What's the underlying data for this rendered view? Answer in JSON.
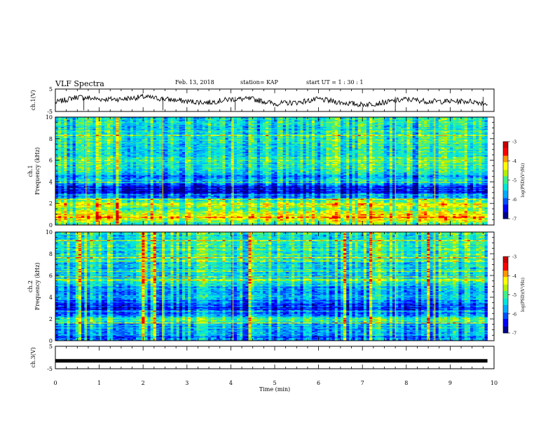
{
  "header": {
    "title": "VLF Spectra",
    "date": "Feb. 13, 2018",
    "station": "station= KAP",
    "start_ut": "start  UT =   1 : 30 : 1"
  },
  "chart_data": [
    {
      "type": "line",
      "panel": "ch1-waveform",
      "ylabel": "ch.1(V)",
      "ylim": [
        -5,
        5
      ],
      "yticks": [
        "5",
        "-5"
      ],
      "xlim": [
        0,
        10
      ],
      "x_extent": [
        0,
        9.85
      ],
      "series": [
        {
          "x": [
            0,
            0.5,
            1,
            1.5,
            2,
            2.5,
            3,
            3.5,
            4,
            4.5,
            5,
            5.5,
            6,
            6.5,
            7,
            7.5,
            8,
            8.5,
            9,
            9.5,
            9.85
          ],
          "values": [
            -1.0,
            1.5,
            0.5,
            0.5,
            1.5,
            0.5,
            -0.5,
            -1.0,
            0.5,
            0.5,
            -1.5,
            -1.0,
            0.5,
            -1.0,
            -2.0,
            -1.0,
            0.5,
            -0.5,
            -0.5,
            -0.5,
            -1.5
          ]
        }
      ]
    },
    {
      "type": "heatmap",
      "panel": "ch1-spectrogram",
      "ylabel": "ch.1\nFrequency (kHz)",
      "ylim": [
        0,
        10
      ],
      "yticks": [
        "10",
        "8",
        "6",
        "4",
        "2",
        "0"
      ],
      "xlim": [
        0,
        10
      ],
      "x_extent": [
        0,
        9.85
      ],
      "colorbar": {
        "label": "log(PSD)(V²/Hz)",
        "range": [
          -7,
          -3
        ],
        "ticks": [
          "-3",
          "-4",
          "-5",
          "-6",
          "-7"
        ]
      },
      "frequency_bands_khz": [
        10,
        9,
        8,
        7,
        6,
        5.5,
        5,
        4.5,
        4,
        3.5,
        3,
        2.5,
        2,
        1.5,
        1,
        0.5,
        0
      ],
      "mean_log_psd": [
        -5.4,
        -5.4,
        -5.3,
        -5.3,
        -5.1,
        -5.3,
        -5.4,
        -5.9,
        -5.6,
        -6.4,
        -6.6,
        -5.7,
        -4.4,
        -4.9,
        -4.3,
        -4.5,
        -5.2
      ]
    },
    {
      "type": "heatmap",
      "panel": "ch2-spectrogram",
      "ylabel": "ch.2\nFrequency (kHz)",
      "ylim": [
        0,
        10
      ],
      "yticks": [
        "10",
        "8",
        "6",
        "4",
        "2",
        "0"
      ],
      "xlim": [
        0,
        10
      ],
      "x_extent": [
        0,
        9.85
      ],
      "colorbar": {
        "label": "log(PSD)(V²/Hz)",
        "range": [
          -7,
          -3
        ],
        "ticks": [
          "-3",
          "-4",
          "-5",
          "-6",
          "-7"
        ]
      },
      "frequency_bands_khz": [
        10,
        9,
        8,
        7,
        6,
        5.5,
        5,
        4.5,
        4,
        3.5,
        3,
        2.5,
        2,
        1.5,
        1,
        0.5,
        0
      ],
      "mean_log_psd": [
        -5.2,
        -5.2,
        -5.1,
        -5.3,
        -5.4,
        -5.3,
        -5.5,
        -5.6,
        -5.6,
        -5.9,
        -6.3,
        -6.0,
        -4.9,
        -5.6,
        -5.7,
        -5.9,
        -6.0
      ]
    },
    {
      "type": "line",
      "panel": "ch3-waveform",
      "ylabel": "ch.3(V)",
      "ylim": [
        -5,
        5
      ],
      "yticks": [
        "5",
        "-5"
      ],
      "xlim": [
        0,
        10
      ],
      "x_extent": [
        0,
        9.85
      ],
      "xlabel": "Time  (min)",
      "xticks": [
        "0",
        "1",
        "2",
        "3",
        "4",
        "5",
        "6",
        "7",
        "8",
        "9",
        "10"
      ],
      "series": [
        {
          "x": [
            0,
            9.85
          ],
          "values": [
            -1.5,
            -1.5
          ]
        }
      ]
    }
  ],
  "colors": {
    "line": "#000000",
    "colormap": [
      "#00008c",
      "#0000ff",
      "#0050ff",
      "#00aaff",
      "#00e6dc",
      "#3cf08c",
      "#b4f000",
      "#ffff00",
      "#ff9600",
      "#ff0000",
      "#c80000"
    ]
  }
}
